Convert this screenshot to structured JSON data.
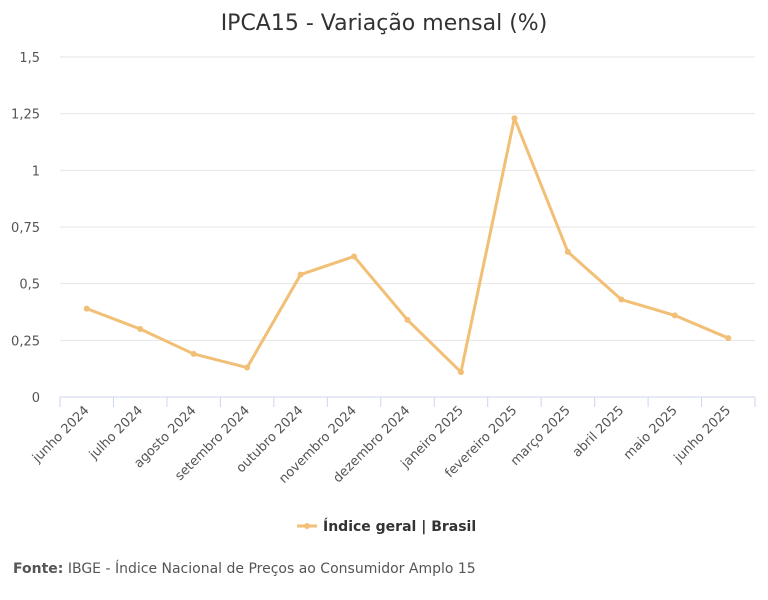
{
  "chart_data": {
    "type": "line",
    "title": "IPCA15 - Variação mensal (%)",
    "categories": [
      "junho 2024",
      "julho 2024",
      "agosto 2024",
      "setembro 2024",
      "outubro 2024",
      "novembro 2024",
      "dezembro 2024",
      "janeiro 2025",
      "fevereiro 2025",
      "março 2025",
      "abril 2025",
      "maio 2025",
      "junho 2025"
    ],
    "series": [
      {
        "name": "Índice geral | Brasil",
        "values": [
          0.39,
          0.3,
          0.19,
          0.13,
          0.54,
          0.62,
          0.34,
          0.11,
          1.23,
          0.64,
          0.43,
          0.36,
          0.26
        ]
      }
    ],
    "ylim": [
      0,
      1.5
    ],
    "yticks": [
      0,
      0.25,
      0.5,
      0.75,
      1,
      1.25,
      1.5
    ],
    "ytick_labels": [
      "0",
      "0,25",
      "0,5",
      "0,75",
      "1",
      "1,25",
      "1,5"
    ],
    "grid": true,
    "legend_position": "bottom-center",
    "line_color": "#f1bf75"
  },
  "source": {
    "label": "Fonte:",
    "text": "IBGE - Índice Nacional de Preços ao Consumidor Amplo 15"
  }
}
